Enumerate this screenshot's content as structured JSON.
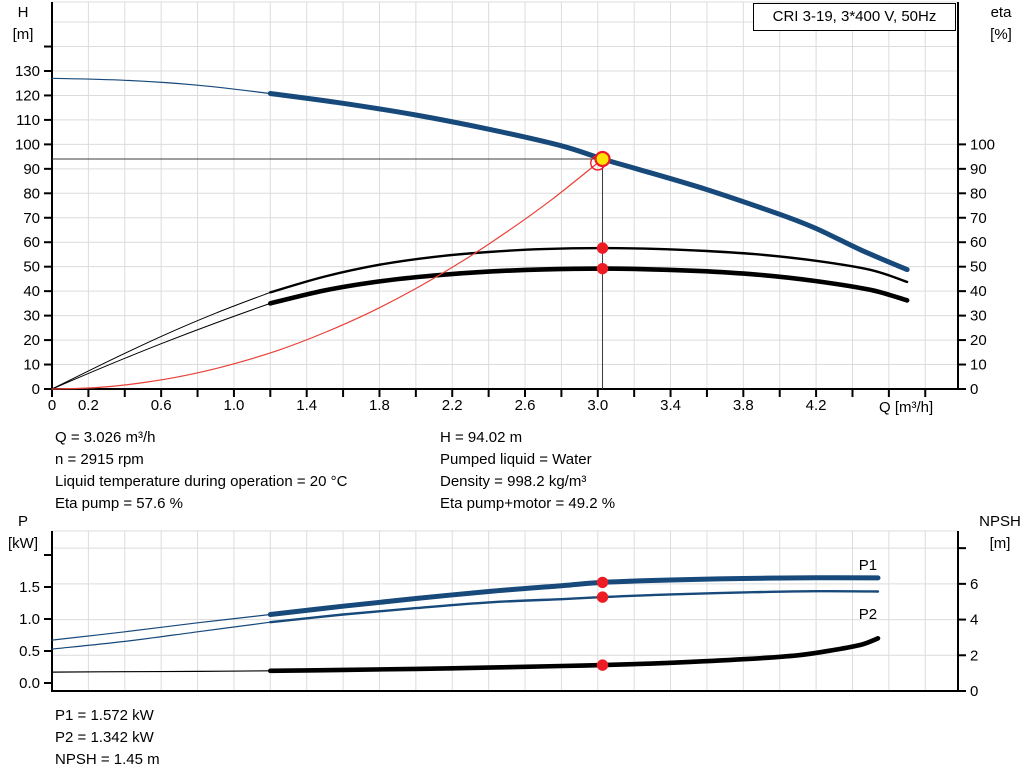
{
  "colors": {
    "curve_blue": "#17497b",
    "curve_black": "#000000",
    "system_red": "#e84038",
    "marker_red": "#ed1b24",
    "duty_yellow": "#ffe300",
    "grid": "#dcdcdc",
    "axis": "#000000",
    "crosshair": "#3c3c3c"
  },
  "duty_info": {
    "left": [
      "Q = 3.026 m³/h",
      "n = 2915 rpm",
      "Liquid temperature during operation = 20 °C",
      "Eta pump = 57.6 %"
    ],
    "right": [
      "H = 94.02 m",
      "Pumped liquid = Water",
      "Density = 998.2 kg/m³",
      "Eta pump+motor = 49.2 %"
    ]
  },
  "power_info": [
    "P1 = 1.572 kW",
    "P2 = 1.342 kW",
    "NPSH = 1.45 m"
  ],
  "chart_data": [
    {
      "id": "qh-eta-chart",
      "type": "line",
      "title": "CRI 3-19, 3*400 V, 50Hz",
      "x_axis": {
        "label": "Q [m³/h]",
        "min": 0,
        "max": 4.98,
        "ticks": [
          [
            0,
            "0"
          ],
          [
            0.2,
            "0.2"
          ],
          [
            0.4,
            ""
          ],
          [
            0.6,
            "0.6"
          ],
          [
            0.8,
            ""
          ],
          [
            1.0,
            "1.0"
          ],
          [
            1.2,
            ""
          ],
          [
            1.4,
            "1.4"
          ],
          [
            1.6,
            ""
          ],
          [
            1.8,
            "1.8"
          ],
          [
            2.0,
            ""
          ],
          [
            2.2,
            "2.2"
          ],
          [
            2.4,
            ""
          ],
          [
            2.6,
            "2.6"
          ],
          [
            2.8,
            ""
          ],
          [
            3.0,
            "3.0"
          ],
          [
            3.2,
            ""
          ],
          [
            3.4,
            "3.4"
          ],
          [
            3.6,
            ""
          ],
          [
            3.8,
            "3.8"
          ],
          [
            4.0,
            ""
          ],
          [
            4.2,
            "4.2"
          ],
          [
            4.4,
            ""
          ],
          [
            4.6,
            ""
          ],
          [
            4.8,
            ""
          ]
        ]
      },
      "left_axis": {
        "title": "H",
        "unit": "[m]",
        "min": 0,
        "max": 158.2,
        "ticks": [
          [
            0,
            "0"
          ],
          [
            10,
            "10"
          ],
          [
            20,
            "20"
          ],
          [
            30,
            "30"
          ],
          [
            40,
            "40"
          ],
          [
            50,
            "50"
          ],
          [
            60,
            "60"
          ],
          [
            70,
            "70"
          ],
          [
            80,
            "80"
          ],
          [
            90,
            "90"
          ],
          [
            100,
            "100"
          ],
          [
            110,
            "110"
          ],
          [
            120,
            "120"
          ],
          [
            130,
            "130"
          ],
          [
            140,
            ""
          ]
        ]
      },
      "right_axis": {
        "title": "eta",
        "unit": "[%]",
        "min": 0,
        "max": 158.2,
        "ticks": [
          [
            0,
            "0"
          ],
          [
            10,
            "10"
          ],
          [
            20,
            "20"
          ],
          [
            30,
            "30"
          ],
          [
            40,
            "40"
          ],
          [
            50,
            "50"
          ],
          [
            60,
            "60"
          ],
          [
            70,
            "70"
          ],
          [
            80,
            "80"
          ],
          [
            90,
            "90"
          ],
          [
            100,
            "100"
          ]
        ]
      },
      "grid": {
        "x_values": [
          0.2,
          0.4,
          0.6,
          0.8,
          1.0,
          1.2,
          1.4,
          1.6,
          1.8,
          2.0,
          2.2,
          2.4,
          2.6,
          2.8,
          3.0,
          3.2,
          3.4,
          3.6,
          3.8,
          4.0,
          4.2,
          4.4,
          4.6,
          4.8
        ],
        "y_values": [
          10,
          20,
          30,
          40,
          50,
          60,
          70,
          80,
          90,
          100,
          110,
          120,
          130,
          140,
          150
        ],
        "y_axis": "left"
      },
      "series": [
        {
          "id": "h-curve",
          "name": "H",
          "axis": "left",
          "color": "curve_blue",
          "width": 5,
          "thin_width": 1.2,
          "thin_until": 1.2,
          "points": [
            [
              0,
              127
            ],
            [
              0.4,
              126.2
            ],
            [
              0.8,
              124.2
            ],
            [
              1.2,
              120.8
            ],
            [
              1.6,
              116.8
            ],
            [
              2.0,
              112.0
            ],
            [
              2.4,
              106.2
            ],
            [
              2.8,
              99.4
            ],
            [
              3.026,
              94.02
            ],
            [
              3.2,
              90.3
            ],
            [
              3.6,
              81.5
            ],
            [
              4.0,
              71.4
            ],
            [
              4.2,
              65.6
            ],
            [
              4.45,
              56.7
            ],
            [
              4.7,
              48.8
            ]
          ]
        },
        {
          "id": "eta-pump-curve",
          "name": "Eta pump",
          "axis": "right",
          "color": "curve_black",
          "width": 2.4,
          "thin_width": 1,
          "thin_until": 1.2,
          "points": [
            [
              0,
              0
            ],
            [
              0.3,
              11
            ],
            [
              0.6,
              21.5
            ],
            [
              0.9,
              31
            ],
            [
              1.2,
              39.5
            ],
            [
              1.5,
              46
            ],
            [
              1.8,
              50.8
            ],
            [
              2.1,
              54
            ],
            [
              2.4,
              56
            ],
            [
              2.7,
              57.2
            ],
            [
              3.026,
              57.6
            ],
            [
              3.3,
              57.3
            ],
            [
              3.6,
              56.4
            ],
            [
              3.9,
              54.9
            ],
            [
              4.2,
              52.4
            ],
            [
              4.5,
              48.7
            ],
            [
              4.7,
              43.8
            ]
          ]
        },
        {
          "id": "eta-pump-motor-curve",
          "name": "Eta pump+motor",
          "axis": "right",
          "color": "curve_black",
          "width": 4.6,
          "thin_width": 1,
          "thin_until": 1.2,
          "points": [
            [
              0,
              0
            ],
            [
              0.3,
              9.5
            ],
            [
              0.6,
              18.5
            ],
            [
              0.9,
              27
            ],
            [
              1.2,
              35
            ],
            [
              1.5,
              40.3
            ],
            [
              1.8,
              44
            ],
            [
              2.1,
              46.4
            ],
            [
              2.4,
              48
            ],
            [
              2.7,
              48.9
            ],
            [
              3.026,
              49.2
            ],
            [
              3.3,
              48.9
            ],
            [
              3.6,
              48.1
            ],
            [
              3.9,
              46.6
            ],
            [
              4.2,
              44.1
            ],
            [
              4.5,
              40.5
            ],
            [
              4.7,
              36.2
            ]
          ]
        },
        {
          "id": "system-curve",
          "name": "System curve",
          "axis": "left",
          "color": "system_red",
          "width": 1.2,
          "points": [
            [
              0,
              0
            ],
            [
              0.25,
              0.6
            ],
            [
              0.5,
              2.6
            ],
            [
              0.75,
              5.8
            ],
            [
              1.0,
              10.3
            ],
            [
              1.25,
              16.0
            ],
            [
              1.5,
              23.1
            ],
            [
              1.75,
              31.4
            ],
            [
              2.0,
              41.1
            ],
            [
              2.25,
              52.0
            ],
            [
              2.5,
              64.2
            ],
            [
              2.75,
              77.6
            ],
            [
              3.026,
              94.02
            ]
          ]
        }
      ],
      "markers": [
        {
          "id": "duty-crosshair",
          "kind": "crosshair",
          "axis": "left",
          "x": 3.026,
          "y": 94.02
        },
        {
          "id": "requested-duty-point",
          "kind": "open-circle",
          "axis": "left",
          "x": 3.0,
          "y": 92.4,
          "r": 7
        },
        {
          "id": "actual-duty-point",
          "kind": "duty-circle",
          "axis": "left",
          "x": 3.026,
          "y": 94.02,
          "r": 7
        },
        {
          "id": "eta-pump-dot",
          "kind": "dot",
          "axis": "right",
          "x": 3.026,
          "y": 57.6,
          "r": 5.7
        },
        {
          "id": "eta-pump-motor-dot",
          "kind": "dot",
          "axis": "right",
          "x": 3.026,
          "y": 49.2,
          "r": 5.7
        }
      ],
      "curve_labels": []
    },
    {
      "id": "power-npsh-chart",
      "type": "line",
      "title": "",
      "x_axis": {
        "label": "",
        "min": 0,
        "max": 4.98,
        "ticks": []
      },
      "left_axis": {
        "title": "P",
        "unit": "[kW]",
        "min": -0.125,
        "max": 2.375,
        "ticks": [
          [
            0,
            "0.0"
          ],
          [
            0.5,
            "0.5"
          ],
          [
            1.0,
            "1.0"
          ],
          [
            1.5,
            "1.5"
          ],
          [
            2.0,
            ""
          ]
        ]
      },
      "right_axis": {
        "title": "NPSH",
        "unit": "[m]",
        "min": 0,
        "max": 8.96,
        "ticks": [
          [
            0,
            "0"
          ],
          [
            2,
            "2"
          ],
          [
            4,
            "4"
          ],
          [
            6,
            "6"
          ],
          [
            8,
            ""
          ]
        ]
      },
      "grid": {
        "x_values": [
          0.2,
          0.4,
          0.6,
          0.8,
          1.0,
          1.2,
          1.4,
          1.6,
          1.8,
          2.0,
          2.2,
          2.4,
          2.6,
          2.8,
          3.0,
          3.2,
          3.4,
          3.6,
          3.8,
          4.0,
          4.2,
          4.4,
          4.6,
          4.8
        ],
        "y_values": [
          2,
          4,
          6,
          8
        ],
        "y_axis": "right"
      },
      "series": [
        {
          "id": "p1-curve",
          "name": "P1",
          "axis": "left",
          "color": "curve_blue",
          "width": 5,
          "thin_width": 1.2,
          "thin_until": 1.2,
          "points": [
            [
              0,
              0.67
            ],
            [
              0.4,
              0.8
            ],
            [
              0.8,
              0.94
            ],
            [
              1.2,
              1.07
            ],
            [
              1.6,
              1.2
            ],
            [
              2.0,
              1.32
            ],
            [
              2.4,
              1.43
            ],
            [
              2.8,
              1.52
            ],
            [
              3.026,
              1.572
            ],
            [
              3.4,
              1.61
            ],
            [
              3.8,
              1.633
            ],
            [
              4.2,
              1.645
            ],
            [
              4.54,
              1.642
            ]
          ]
        },
        {
          "id": "p2-curve",
          "name": "P2",
          "axis": "left",
          "color": "curve_blue",
          "width": 2.4,
          "thin_width": 1.2,
          "thin_until": 1.2,
          "points": [
            [
              0,
              0.53
            ],
            [
              0.4,
              0.65
            ],
            [
              0.8,
              0.8
            ],
            [
              1.2,
              0.95
            ],
            [
              1.6,
              1.07
            ],
            [
              2.0,
              1.17
            ],
            [
              2.4,
              1.26
            ],
            [
              2.8,
              1.31
            ],
            [
              3.026,
              1.342
            ],
            [
              3.4,
              1.385
            ],
            [
              3.8,
              1.415
            ],
            [
              4.2,
              1.435
            ],
            [
              4.54,
              1.43
            ]
          ]
        },
        {
          "id": "npsh-curve",
          "name": "NPSH",
          "axis": "right",
          "color": "curve_black",
          "width": 4.6,
          "thin_width": 1.2,
          "thin_until": 1.2,
          "points": [
            [
              0,
              1.06
            ],
            [
              0.4,
              1.08
            ],
            [
              0.8,
              1.1
            ],
            [
              1.2,
              1.13
            ],
            [
              1.6,
              1.18
            ],
            [
              2.0,
              1.24
            ],
            [
              2.4,
              1.31
            ],
            [
              2.8,
              1.4
            ],
            [
              3.026,
              1.45
            ],
            [
              3.4,
              1.58
            ],
            [
              3.8,
              1.78
            ],
            [
              4.1,
              2.0
            ],
            [
              4.3,
              2.3
            ],
            [
              4.45,
              2.6
            ],
            [
              4.54,
              2.95
            ]
          ]
        }
      ],
      "markers": [
        {
          "id": "p1-dot",
          "kind": "dot",
          "axis": "left",
          "x": 3.026,
          "y": 1.572,
          "r": 5.7
        },
        {
          "id": "p2-dot",
          "kind": "dot",
          "axis": "left",
          "x": 3.026,
          "y": 1.342,
          "r": 5.7
        },
        {
          "id": "npsh-dot",
          "kind": "dot",
          "axis": "right",
          "x": 3.026,
          "y": 1.45,
          "r": 5.7
        }
      ],
      "curve_labels": [
        {
          "text": "P1",
          "axis": "left",
          "x": 4.485,
          "y": 1.84
        },
        {
          "text": "P2",
          "axis": "left",
          "x": 4.485,
          "y": 1.08
        }
      ]
    }
  ]
}
